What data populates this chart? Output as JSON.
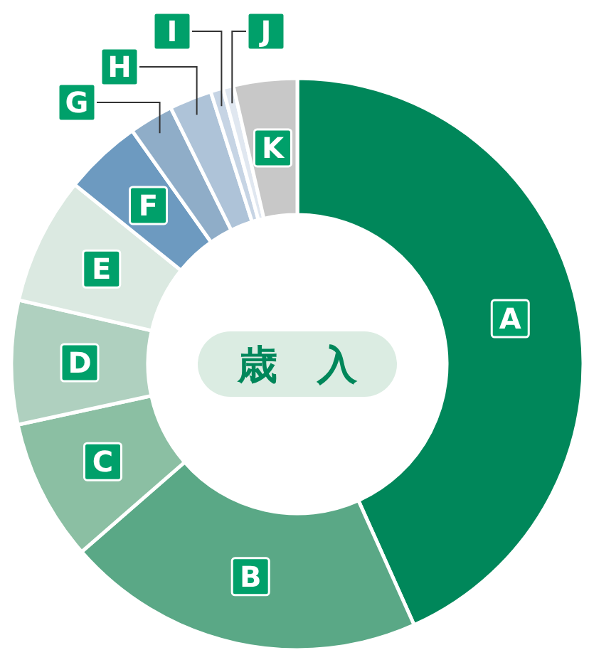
{
  "chart_data": {
    "type": "donut",
    "title": "歳　入",
    "categories": [
      "A",
      "B",
      "C",
      "D",
      "E",
      "F",
      "G",
      "H",
      "I",
      "J",
      "K"
    ],
    "values": [
      43.3,
      20.3,
      8,
      7,
      7.2,
      4.4,
      2.5,
      2.4,
      0.7,
      0.6,
      3.6
    ],
    "colors": [
      "#00875a",
      "#5aa886",
      "#8bbfa3",
      "#afd0bf",
      "#dbe9e1",
      "#6d9ac0",
      "#8fadc8",
      "#aec3d8",
      "#c6d4e4",
      "#e0e7f0",
      "#c8c8c8"
    ],
    "legend": false
  }
}
